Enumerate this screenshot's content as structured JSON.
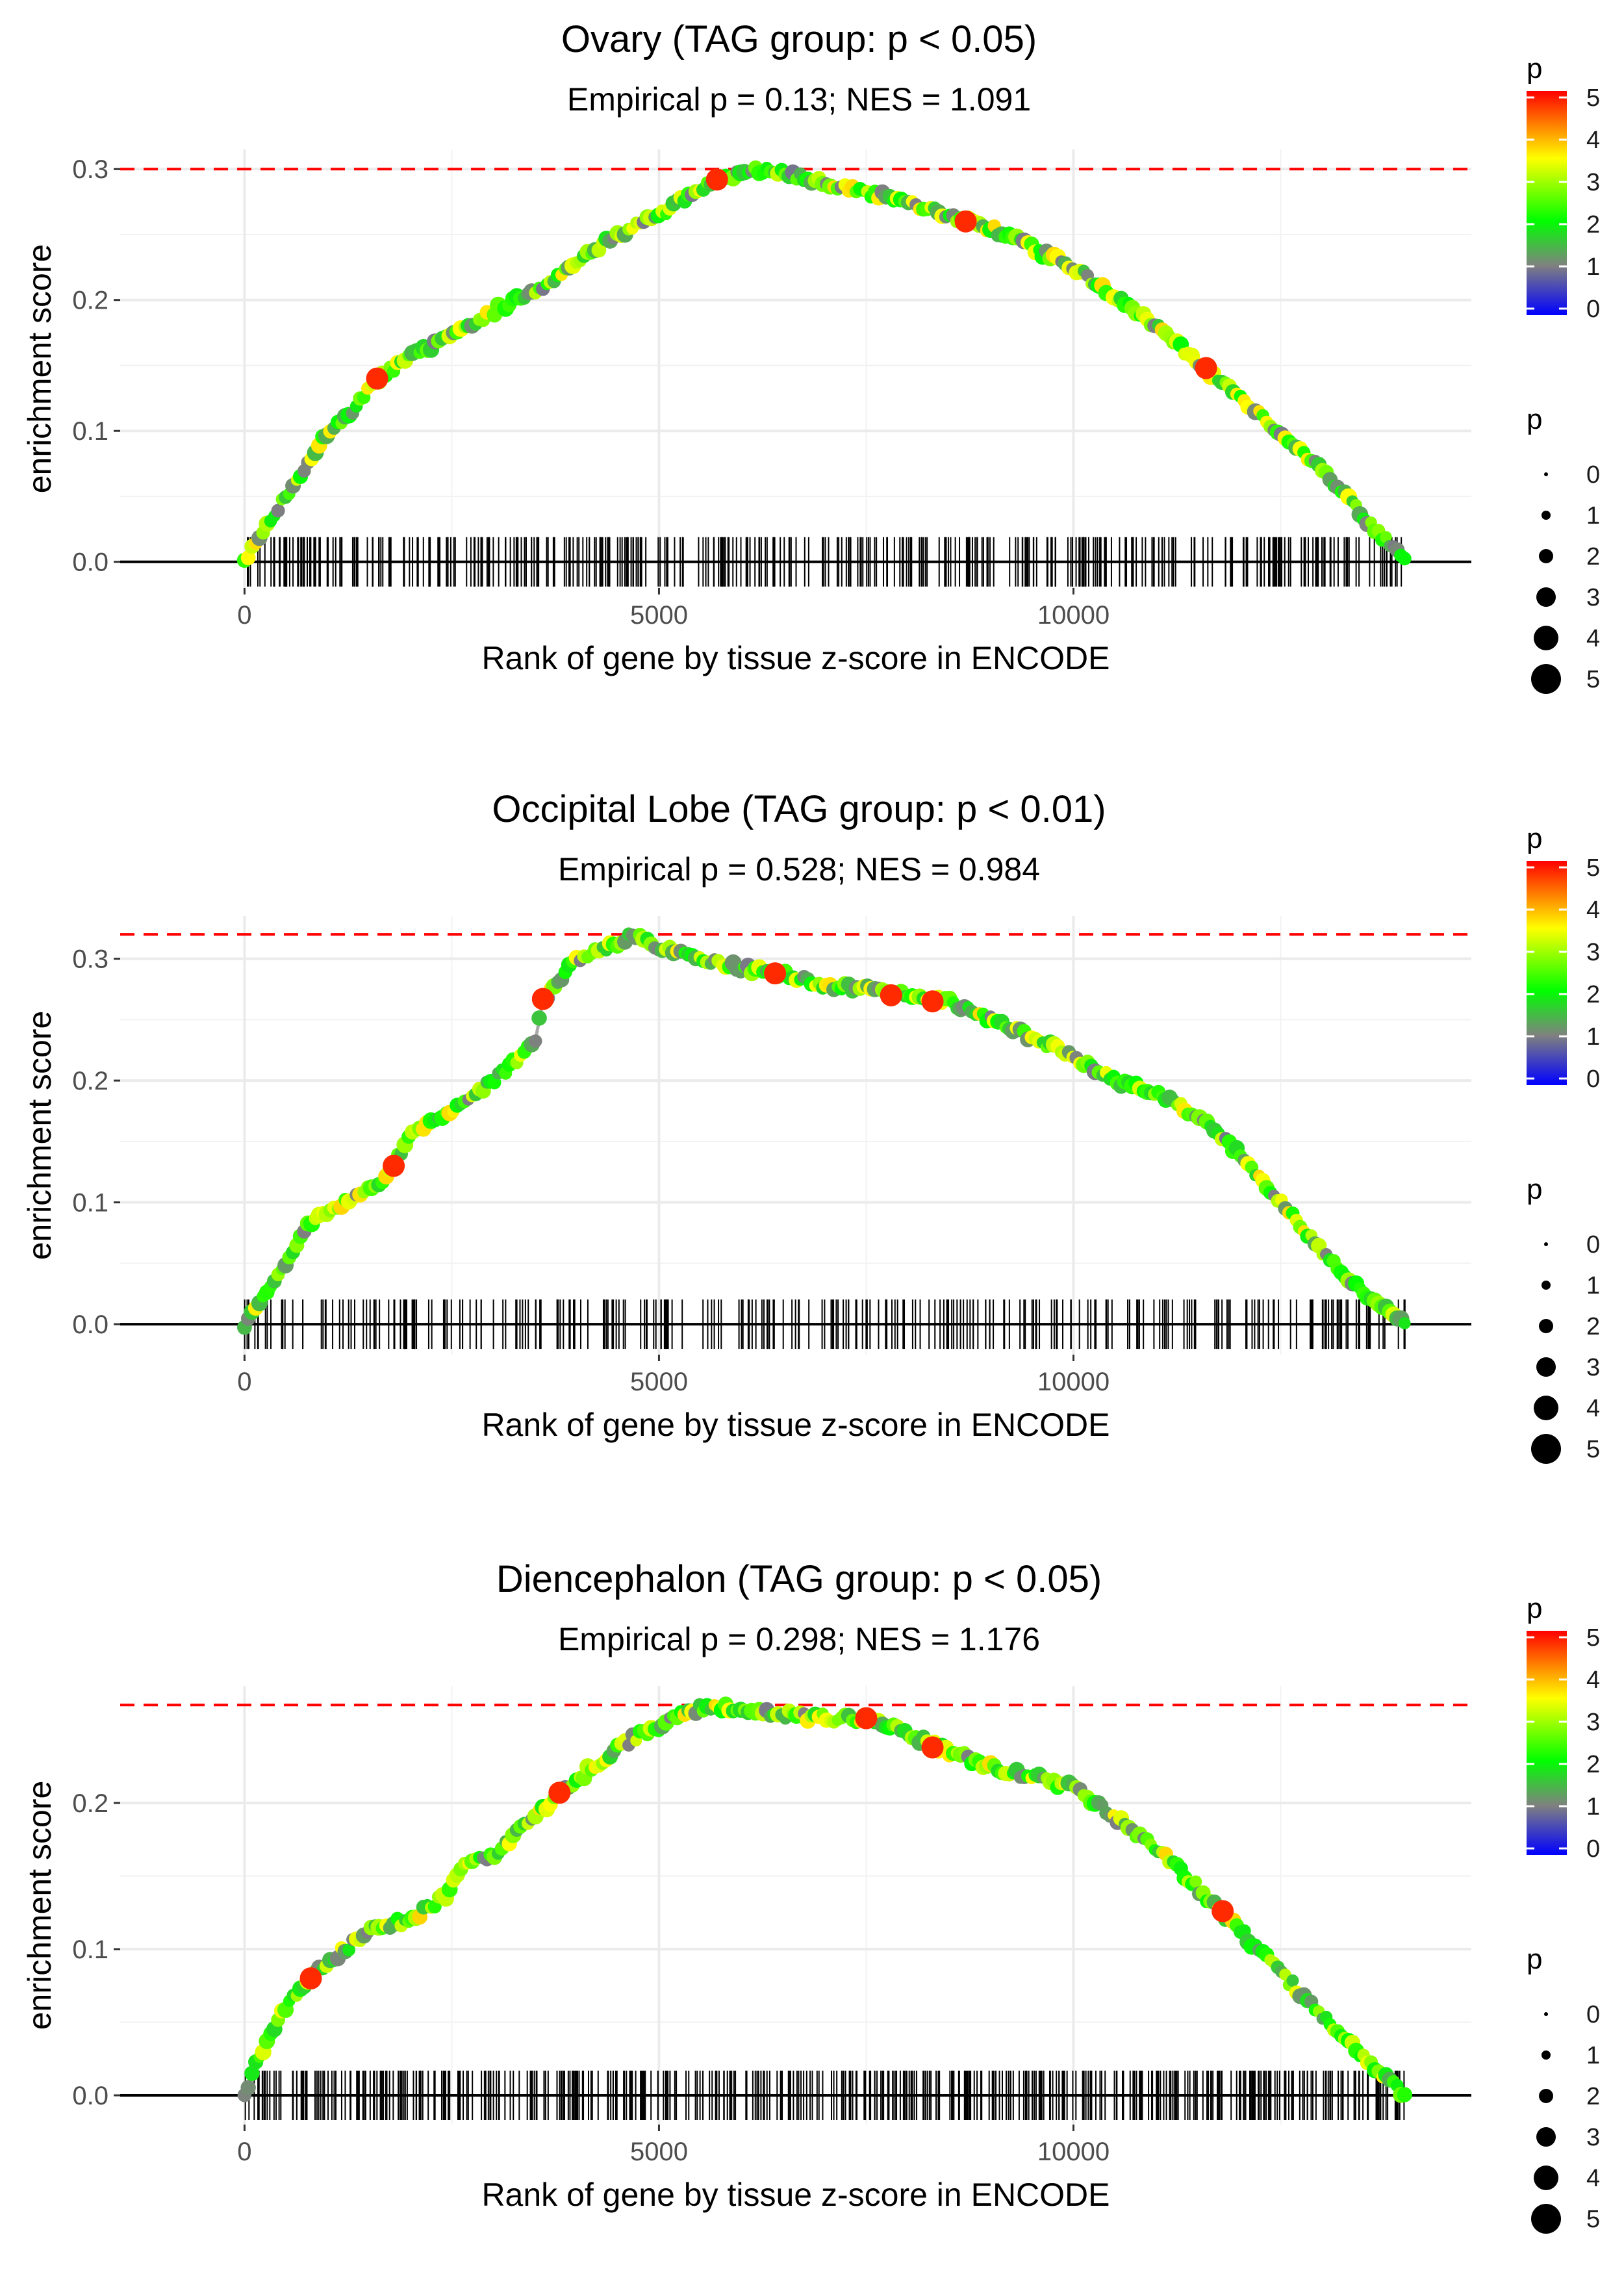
{
  "chart_data": [
    {
      "type": "scatter",
      "title": "Ovary (TAG group: p < 0.05)",
      "subtitle": "Empirical p = 0.13; NES = 1.091",
      "xlabel": "Rank of gene by tissue z-score in ENCODE",
      "ylabel": "enrichment score",
      "xlim": [
        -1500,
        14800
      ],
      "ylim": [
        -0.02,
        0.315
      ],
      "x_ticks": [
        0,
        5000,
        10000
      ],
      "y_ticks": [
        0.0,
        0.1,
        0.2,
        0.3
      ],
      "y_tick_labels": [
        "0.0",
        "0.1",
        "0.2",
        "0.3"
      ],
      "x_tick_labels": [
        "0",
        "5000",
        "10000"
      ],
      "max_es": 0.3,
      "max_es_rank": 6200,
      "n_genes": 14000,
      "curve": [
        [
          0,
          0.0
        ],
        [
          200,
          0.02
        ],
        [
          500,
          0.05
        ],
        [
          900,
          0.09
        ],
        [
          1300,
          0.115
        ],
        [
          1600,
          0.14
        ],
        [
          2100,
          0.16
        ],
        [
          2600,
          0.175
        ],
        [
          3100,
          0.195
        ],
        [
          3600,
          0.21
        ],
        [
          4000,
          0.23
        ],
        [
          4500,
          0.25
        ],
        [
          5000,
          0.265
        ],
        [
          5500,
          0.285
        ],
        [
          6000,
          0.297
        ],
        [
          6200,
          0.3
        ],
        [
          7000,
          0.29
        ],
        [
          8000,
          0.275
        ],
        [
          9000,
          0.255
        ],
        [
          10000,
          0.225
        ],
        [
          11000,
          0.18
        ],
        [
          11600,
          0.147
        ],
        [
          12300,
          0.11
        ],
        [
          13000,
          0.07
        ],
        [
          13500,
          0.035
        ],
        [
          14000,
          0.0
        ]
      ],
      "highlighted_points": [
        [
          1600,
          0.14
        ],
        [
          5700,
          0.292
        ],
        [
          8700,
          0.26
        ],
        [
          11600,
          0.148
        ]
      ],
      "hit_count": 420
    },
    {
      "type": "scatter",
      "title": "Occipital Lobe (TAG group: p < 0.01)",
      "subtitle": "Empirical p = 0.528; NES = 0.984",
      "xlabel": "Rank of gene by tissue z-score in ENCODE",
      "ylabel": "enrichment score",
      "xlim": [
        -1500,
        14800
      ],
      "ylim": [
        -0.025,
        0.335
      ],
      "x_ticks": [
        0,
        5000,
        10000
      ],
      "y_ticks": [
        0.0,
        0.1,
        0.2,
        0.3
      ],
      "y_tick_labels": [
        "0.0",
        "0.1",
        "0.2",
        "0.3"
      ],
      "x_tick_labels": [
        "0",
        "5000",
        "10000"
      ],
      "max_es": 0.32,
      "max_es_rank": 4700,
      "n_genes": 14000,
      "curve": [
        [
          0,
          0.0
        ],
        [
          250,
          0.025
        ],
        [
          500,
          0.05
        ],
        [
          800,
          0.085
        ],
        [
          1200,
          0.1
        ],
        [
          1700,
          0.12
        ],
        [
          2000,
          0.155
        ],
        [
          2500,
          0.175
        ],
        [
          3000,
          0.2
        ],
        [
          3500,
          0.23
        ],
        [
          3600,
          0.265
        ],
        [
          4000,
          0.3
        ],
        [
          4500,
          0.312
        ],
        [
          4700,
          0.32
        ],
        [
          5000,
          0.31
        ],
        [
          5500,
          0.3
        ],
        [
          6000,
          0.292
        ],
        [
          6500,
          0.288
        ],
        [
          7000,
          0.278
        ],
        [
          7500,
          0.275
        ],
        [
          8000,
          0.27
        ],
        [
          8500,
          0.265
        ],
        [
          9000,
          0.25
        ],
        [
          9500,
          0.235
        ],
        [
          10000,
          0.22
        ],
        [
          10500,
          0.2
        ],
        [
          11000,
          0.19
        ],
        [
          11500,
          0.17
        ],
        [
          12000,
          0.14
        ],
        [
          12500,
          0.1
        ],
        [
          13000,
          0.06
        ],
        [
          13500,
          0.025
        ],
        [
          14000,
          0.0
        ]
      ],
      "highlighted_points": [
        [
          1800,
          0.13
        ],
        [
          3600,
          0.267
        ],
        [
          6400,
          0.288
        ],
        [
          7800,
          0.27
        ],
        [
          8300,
          0.265
        ]
      ],
      "hit_count": 300
    },
    {
      "type": "scatter",
      "title": "Diencephalon (TAG group: p < 0.05)",
      "subtitle": "Empirical p = 0.298; NES = 1.176",
      "xlabel": "Rank of gene by tissue z-score in ENCODE",
      "ylabel": "enrichment score",
      "xlim": [
        -1500,
        14800
      ],
      "ylim": [
        -0.02,
        0.28
      ],
      "x_ticks": [
        0,
        5000,
        10000
      ],
      "y_ticks": [
        0.0,
        0.1,
        0.2
      ],
      "y_tick_labels": [
        "0.0",
        "0.1",
        "0.2"
      ],
      "x_tick_labels": [
        "0",
        "5000",
        "10000"
      ],
      "max_es": 0.267,
      "max_es_rank": 5600,
      "n_genes": 14000,
      "curve": [
        [
          0,
          0.0
        ],
        [
          200,
          0.03
        ],
        [
          500,
          0.06
        ],
        [
          800,
          0.08
        ],
        [
          1200,
          0.1
        ],
        [
          1600,
          0.115
        ],
        [
          2000,
          0.12
        ],
        [
          2400,
          0.135
        ],
        [
          2700,
          0.16
        ],
        [
          3000,
          0.165
        ],
        [
          3500,
          0.19
        ],
        [
          3800,
          0.205
        ],
        [
          4200,
          0.225
        ],
        [
          4700,
          0.245
        ],
        [
          5200,
          0.258
        ],
        [
          5600,
          0.267
        ],
        [
          6000,
          0.263
        ],
        [
          7000,
          0.258
        ],
        [
          7500,
          0.258
        ],
        [
          8300,
          0.24
        ],
        [
          9000,
          0.225
        ],
        [
          10000,
          0.21
        ],
        [
          11000,
          0.17
        ],
        [
          11800,
          0.125
        ],
        [
          12400,
          0.09
        ],
        [
          13000,
          0.055
        ],
        [
          13500,
          0.025
        ],
        [
          14000,
          0.0
        ]
      ],
      "highlighted_points": [
        [
          800,
          0.08
        ],
        [
          3800,
          0.207
        ],
        [
          7500,
          0.258
        ],
        [
          8300,
          0.238
        ],
        [
          11800,
          0.126
        ]
      ],
      "hit_count": 500
    }
  ],
  "legend": {
    "color_title": "p",
    "color_ticks": [
      "0",
      "1",
      "2",
      "3",
      "4",
      "5"
    ],
    "size_title": "p",
    "size_ticks": [
      "0",
      "1",
      "2",
      "3",
      "4",
      "5"
    ],
    "gradient_colors": [
      "#0000ff",
      "#808080",
      "#00ff00",
      "#ffff00",
      "#ff0000"
    ]
  }
}
